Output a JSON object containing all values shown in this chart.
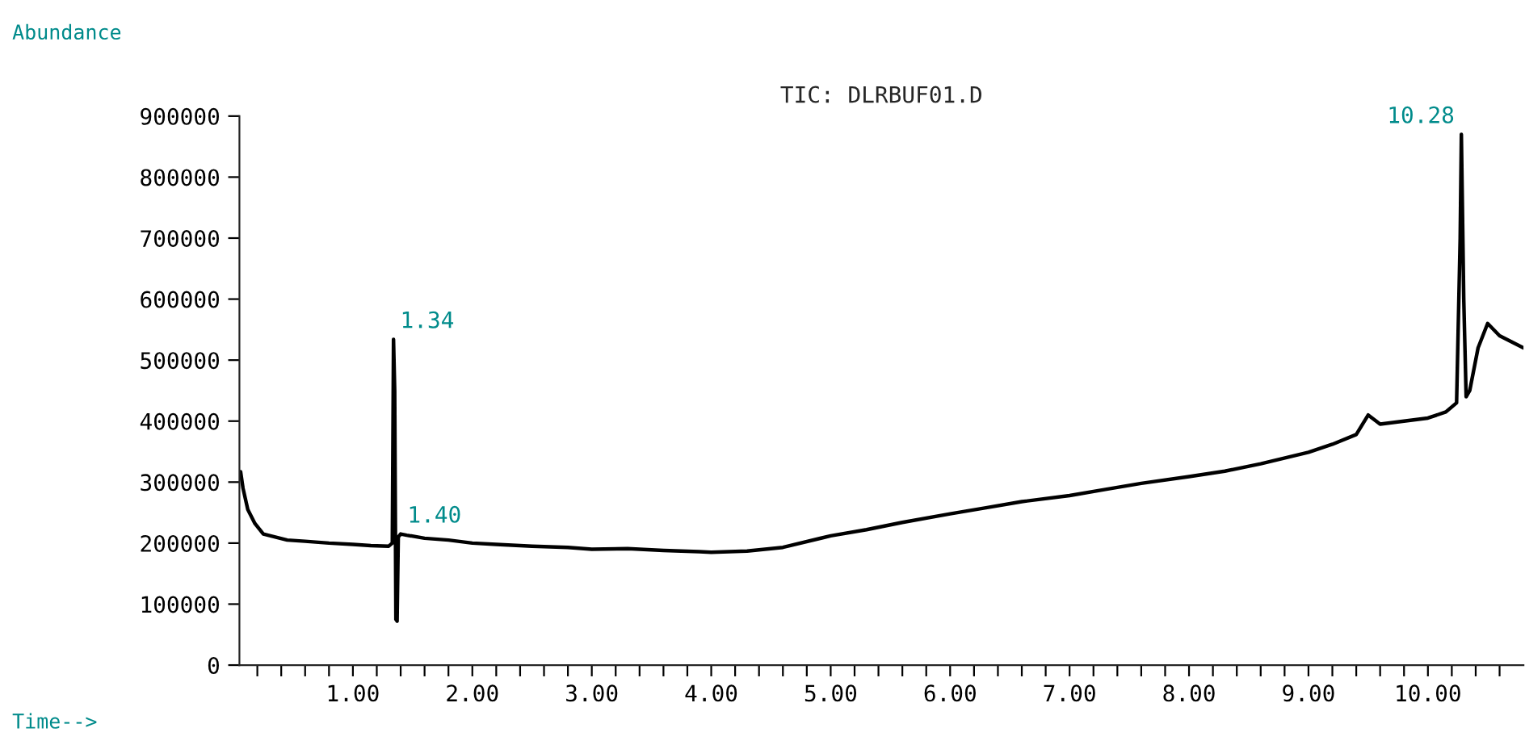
{
  "chart_data": {
    "type": "line",
    "title": "TIC: DLRBUF01.D",
    "xlabel": "Time-->",
    "ylabel": "Abundance",
    "x": [
      0.06,
      0.08,
      0.12,
      0.18,
      0.25,
      0.35,
      0.45,
      0.6,
      0.8,
      1.0,
      1.15,
      1.3,
      1.33,
      1.34,
      1.35,
      1.36,
      1.37,
      1.38,
      1.4,
      1.45,
      1.6,
      1.8,
      2.0,
      2.2,
      2.5,
      2.8,
      3.0,
      3.3,
      3.6,
      3.9,
      4.0,
      4.3,
      4.6,
      5.0,
      5.3,
      5.6,
      6.0,
      6.3,
      6.6,
      7.0,
      7.3,
      7.6,
      8.0,
      8.3,
      8.6,
      9.0,
      9.2,
      9.4,
      9.5,
      9.6,
      9.8,
      10.0,
      10.15,
      10.24,
      10.27,
      10.28,
      10.3,
      10.32,
      10.35,
      10.42,
      10.5,
      10.6,
      10.7,
      10.8
    ],
    "series": [
      {
        "color": "#000000",
        "values": [
          317000,
          290000,
          255000,
          232000,
          215000,
          210000,
          205000,
          203000,
          200000,
          198000,
          196000,
          195000,
          200000,
          534000,
          450000,
          75000,
          72000,
          210000,
          215000,
          213000,
          208000,
          205000,
          200000,
          198000,
          195000,
          193000,
          190000,
          191000,
          188000,
          186000,
          185000,
          187000,
          193000,
          212000,
          222000,
          234000,
          248000,
          258000,
          268000,
          278000,
          288000,
          298000,
          309000,
          318000,
          330000,
          349000,
          362000,
          378000,
          410000,
          395000,
          400000,
          405000,
          415000,
          430000,
          700000,
          870000,
          600000,
          440000,
          450000,
          520000,
          560000,
          540000,
          530000,
          520000
        ]
      }
    ],
    "annotations": [
      {
        "text": "1.34",
        "x": 1.34,
        "y": 534000
      },
      {
        "text": "1.40",
        "x": 1.4,
        "y": 215000
      },
      {
        "text": "10.28",
        "x": 10.28,
        "y": 870000
      }
    ],
    "xlim": [
      0.05,
      10.8
    ],
    "ylim": [
      0,
      900000
    ],
    "xticks": [
      {
        "value": 0.2,
        "label": null
      },
      {
        "value": 0.4,
        "label": null
      },
      {
        "value": 0.6,
        "label": null
      },
      {
        "value": 0.8,
        "label": null
      },
      {
        "value": 1,
        "label": "1.00"
      },
      {
        "value": 1.2,
        "label": null
      },
      {
        "value": 1.4,
        "label": null
      },
      {
        "value": 1.6,
        "label": null
      },
      {
        "value": 1.8,
        "label": null
      },
      {
        "value": 2,
        "label": "2.00"
      },
      {
        "value": 2.2,
        "label": null
      },
      {
        "value": 2.4,
        "label": null
      },
      {
        "value": 2.6,
        "label": null
      },
      {
        "value": 2.8,
        "label": null
      },
      {
        "value": 3,
        "label": "3.00"
      },
      {
        "value": 3.2,
        "label": null
      },
      {
        "value": 3.4,
        "label": null
      },
      {
        "value": 3.6,
        "label": null
      },
      {
        "value": 3.8,
        "label": null
      },
      {
        "value": 4,
        "label": "4.00"
      },
      {
        "value": 4.2,
        "label": null
      },
      {
        "value": 4.4,
        "label": null
      },
      {
        "value": 4.6,
        "label": null
      },
      {
        "value": 4.8,
        "label": null
      },
      {
        "value": 5,
        "label": "5.00"
      },
      {
        "value": 5.2,
        "label": null
      },
      {
        "value": 5.4,
        "label": null
      },
      {
        "value": 5.6,
        "label": null
      },
      {
        "value": 5.8,
        "label": null
      },
      {
        "value": 6,
        "label": "6.00"
      },
      {
        "value": 6.2,
        "label": null
      },
      {
        "value": 6.4,
        "label": null
      },
      {
        "value": 6.6,
        "label": null
      },
      {
        "value": 6.8,
        "label": null
      },
      {
        "value": 7,
        "label": "7.00"
      },
      {
        "value": 7.2,
        "label": null
      },
      {
        "value": 7.4,
        "label": null
      },
      {
        "value": 7.6,
        "label": null
      },
      {
        "value": 7.8,
        "label": null
      },
      {
        "value": 8,
        "label": "8.00"
      },
      {
        "value": 8.2,
        "label": null
      },
      {
        "value": 8.4,
        "label": null
      },
      {
        "value": 8.6,
        "label": null
      },
      {
        "value": 8.8,
        "label": null
      },
      {
        "value": 9,
        "label": "9.00"
      },
      {
        "value": 9.2,
        "label": null
      },
      {
        "value": 9.4,
        "label": null
      },
      {
        "value": 9.6,
        "label": null
      },
      {
        "value": 9.8,
        "label": null
      },
      {
        "value": 10,
        "label": "10.00"
      },
      {
        "value": 10.2,
        "label": null
      },
      {
        "value": 10.4,
        "label": null
      },
      {
        "value": 10.6,
        "label": null
      }
    ],
    "yticks": [
      0,
      100000,
      200000,
      300000,
      400000,
      500000,
      600000,
      700000,
      800000,
      900000
    ],
    "grid": false,
    "legend": false,
    "marker": "none",
    "line_style": "solid"
  }
}
